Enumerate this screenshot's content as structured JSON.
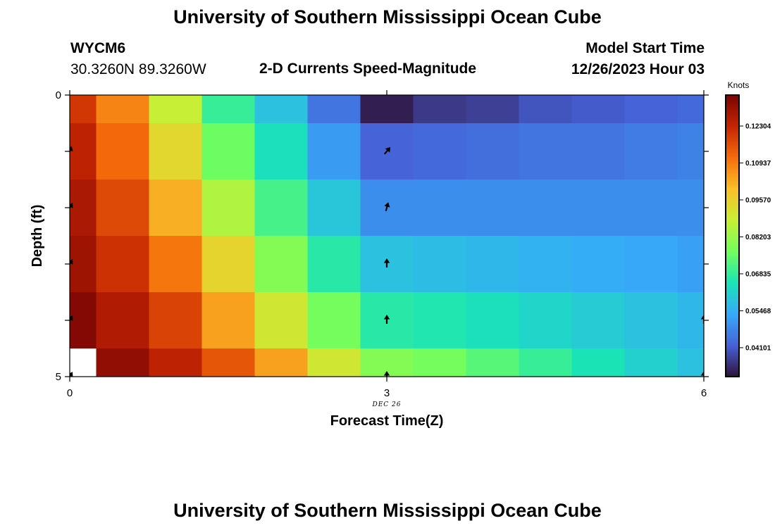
{
  "header": {
    "title": "University of Southern Mississippi Ocean Cube",
    "station_id": "WYCM6",
    "coordinates": "30.3260N  89.3260W",
    "subtitle": "2-D Currents Speed-Magnitude",
    "model_start_label": "Model Start Time",
    "model_start_value": "12/26/2023 Hour 03"
  },
  "footer": {
    "title": "University of Southern Mississippi Ocean Cube"
  },
  "colors": {
    "background": "#ffffff",
    "axis": "#000000",
    "arrow": "#000000"
  },
  "chart_data": {
    "type": "heatmap",
    "xlabel": "Forecast Time(Z)",
    "ylabel": "Depth (ft)",
    "x_date_label": "DEC 26",
    "xlim": [
      0,
      6
    ],
    "ylim": [
      0,
      5
    ],
    "x_ticks": [
      {
        "value": 0,
        "label": "0"
      },
      {
        "value": 3,
        "label": "3"
      },
      {
        "value": 6,
        "label": "6"
      }
    ],
    "y_ticks": [
      {
        "value": 0,
        "label": "0"
      },
      {
        "value": 1,
        "label": ""
      },
      {
        "value": 2,
        "label": ""
      },
      {
        "value": 3,
        "label": ""
      },
      {
        "value": 4,
        "label": ""
      },
      {
        "value": 5,
        "label": "5"
      }
    ],
    "x_centers": [
      0,
      0.5,
      1,
      1.5,
      2,
      2.5,
      3,
      3.5,
      4,
      4.5,
      5,
      5.5,
      6
    ],
    "depth_centers": [
      0,
      1,
      2,
      3,
      4,
      5
    ],
    "speed_knots": [
      [
        0.12,
        0.108,
        0.088,
        0.069,
        0.058,
        0.045,
        0.032,
        0.036,
        0.037,
        0.04,
        0.041,
        0.042,
        0.043
      ],
      [
        0.124,
        0.112,
        0.094,
        0.076,
        0.064,
        0.051,
        0.042,
        0.043,
        0.044,
        0.045,
        0.045,
        0.046,
        0.047
      ],
      [
        0.127,
        0.117,
        0.102,
        0.085,
        0.071,
        0.059,
        0.049,
        0.049,
        0.049,
        0.049,
        0.049,
        0.049,
        0.049
      ],
      [
        0.129,
        0.121,
        0.11,
        0.095,
        0.079,
        0.067,
        0.058,
        0.057,
        0.056,
        0.055,
        0.054,
        0.053,
        0.052
      ],
      [
        0.133,
        0.126,
        0.118,
        0.104,
        0.09,
        0.077,
        0.067,
        0.066,
        0.064,
        0.062,
        0.06,
        0.058,
        0.056
      ],
      [
        null,
        0.131,
        0.124,
        0.115,
        0.104,
        0.09,
        0.079,
        0.077,
        0.073,
        0.069,
        0.065,
        0.061,
        0.058
      ]
    ],
    "current_arrows": [
      {
        "time": 3,
        "depth": 1,
        "direction_deg": 40
      },
      {
        "time": 3,
        "depth": 2,
        "direction_deg": 15
      },
      {
        "time": 3,
        "depth": 3,
        "direction_deg": 0
      },
      {
        "time": 3,
        "depth": 4,
        "direction_deg": 0
      },
      {
        "time": 3,
        "depth": 5,
        "direction_deg": 0
      },
      {
        "time": 6,
        "depth": 4,
        "direction_deg": 0
      },
      {
        "time": 6,
        "depth": 5,
        "direction_deg": 0
      },
      {
        "time": 0,
        "depth": 1,
        "direction_deg": 20
      },
      {
        "time": 0,
        "depth": 2,
        "direction_deg": 30
      },
      {
        "time": 0,
        "depth": 3,
        "direction_deg": 30
      },
      {
        "time": 0,
        "depth": 4,
        "direction_deg": 30
      },
      {
        "time": 0,
        "depth": 5,
        "direction_deg": 30
      }
    ],
    "colorbar": {
      "unit": "Knots",
      "min": 0.0303,
      "max": 0.1345,
      "tick_values": [
        0.04101,
        0.05468,
        0.06835,
        0.08203,
        0.0957,
        0.10937,
        0.12304
      ],
      "tick_labels": [
        "0.04101",
        "0.05468",
        "0.06835",
        "0.08203",
        "0.09570",
        "0.10937",
        "0.12304"
      ],
      "colormap": [
        "#30123b",
        "#4662d7",
        "#36aaf9",
        "#1ae4b6",
        "#72fe5e",
        "#c7ef34",
        "#fabf29",
        "#f56c0b",
        "#c42503",
        "#7a0403"
      ]
    }
  }
}
